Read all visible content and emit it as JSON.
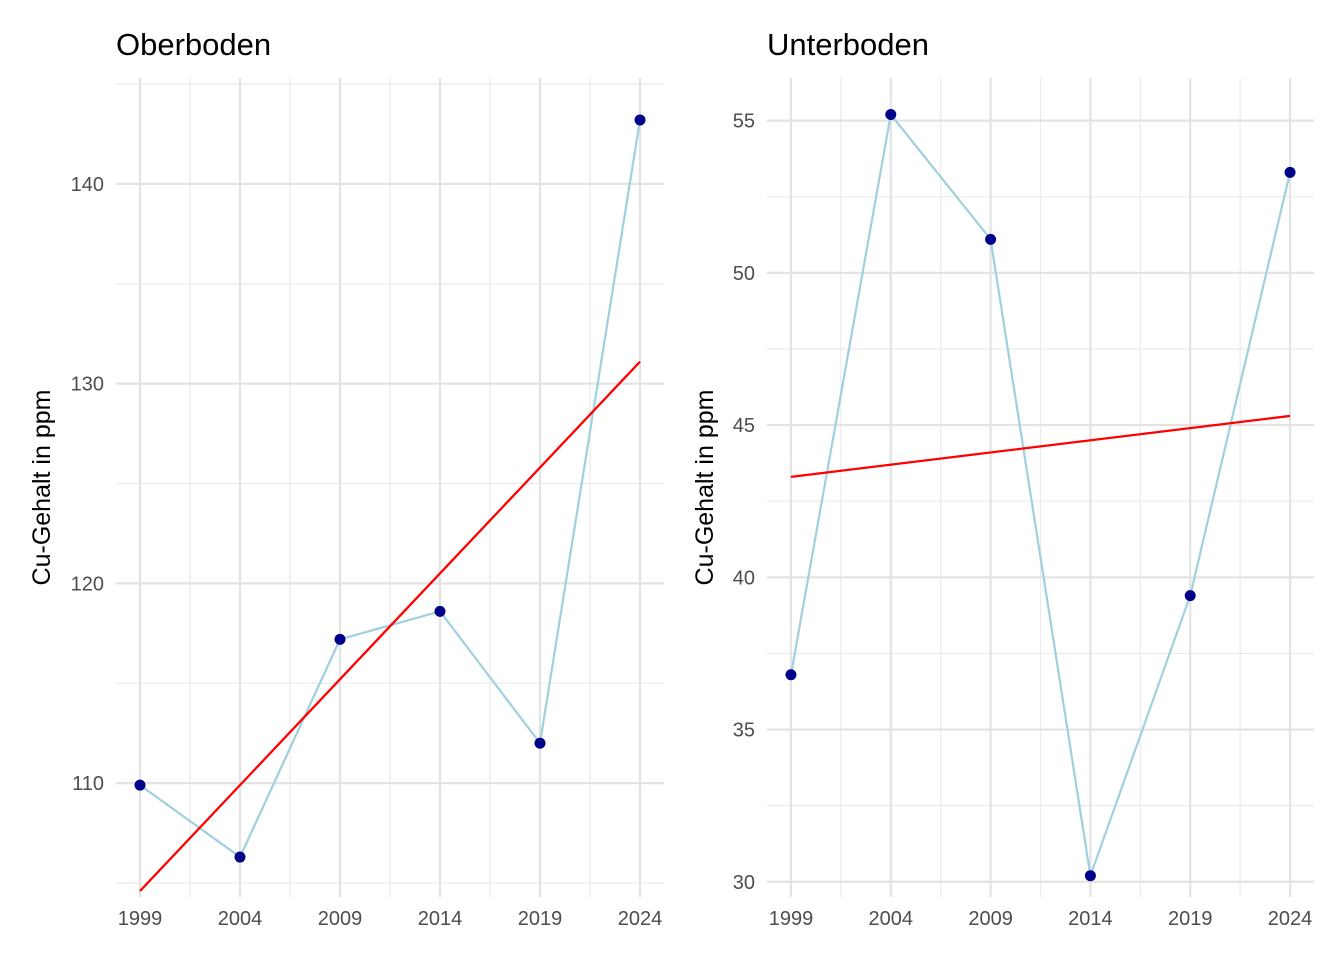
{
  "chart_data": [
    {
      "type": "line",
      "title": "Oberboden",
      "xlabel": "",
      "ylabel": "Cu-Gehalt in ppm",
      "x_ticks": [
        1999,
        2004,
        2009,
        2014,
        2019,
        2024
      ],
      "y_ticks": [
        110,
        120,
        130,
        140
      ],
      "xlim": [
        1997.8,
        2025.2
      ],
      "ylim": [
        104.3,
        145.3
      ],
      "grid": true,
      "series": [
        {
          "style": "line+points",
          "line_color": "#9fd0de",
          "point_color": "#00008b",
          "x": [
            1999,
            2004,
            2009,
            2014,
            2019,
            2024
          ],
          "y": [
            109.9,
            106.3,
            117.2,
            118.6,
            112.0,
            143.2
          ]
        }
      ],
      "trend_line": {
        "color": "#ff0000",
        "x": [
          1999,
          2024
        ],
        "y": [
          104.6,
          131.1
        ]
      }
    },
    {
      "type": "line",
      "title": "Unterboden",
      "xlabel": "",
      "ylabel": "Cu-Gehalt in ppm",
      "x_ticks": [
        1999,
        2004,
        2009,
        2014,
        2019,
        2024
      ],
      "y_ticks": [
        30,
        35,
        40,
        45,
        50,
        55
      ],
      "xlim": [
        1997.8,
        2025.2
      ],
      "ylim": [
        29.5,
        56.4
      ],
      "grid": true,
      "series": [
        {
          "style": "line+points",
          "line_color": "#9fd0de",
          "point_color": "#00008b",
          "x": [
            1999,
            2004,
            2009,
            2014,
            2019,
            2024
          ],
          "y": [
            36.8,
            55.2,
            51.1,
            30.2,
            39.4,
            53.3
          ]
        }
      ],
      "trend_line": {
        "color": "#ff0000",
        "x": [
          1999,
          2024
        ],
        "y": [
          43.3,
          45.3
        ]
      }
    }
  ]
}
